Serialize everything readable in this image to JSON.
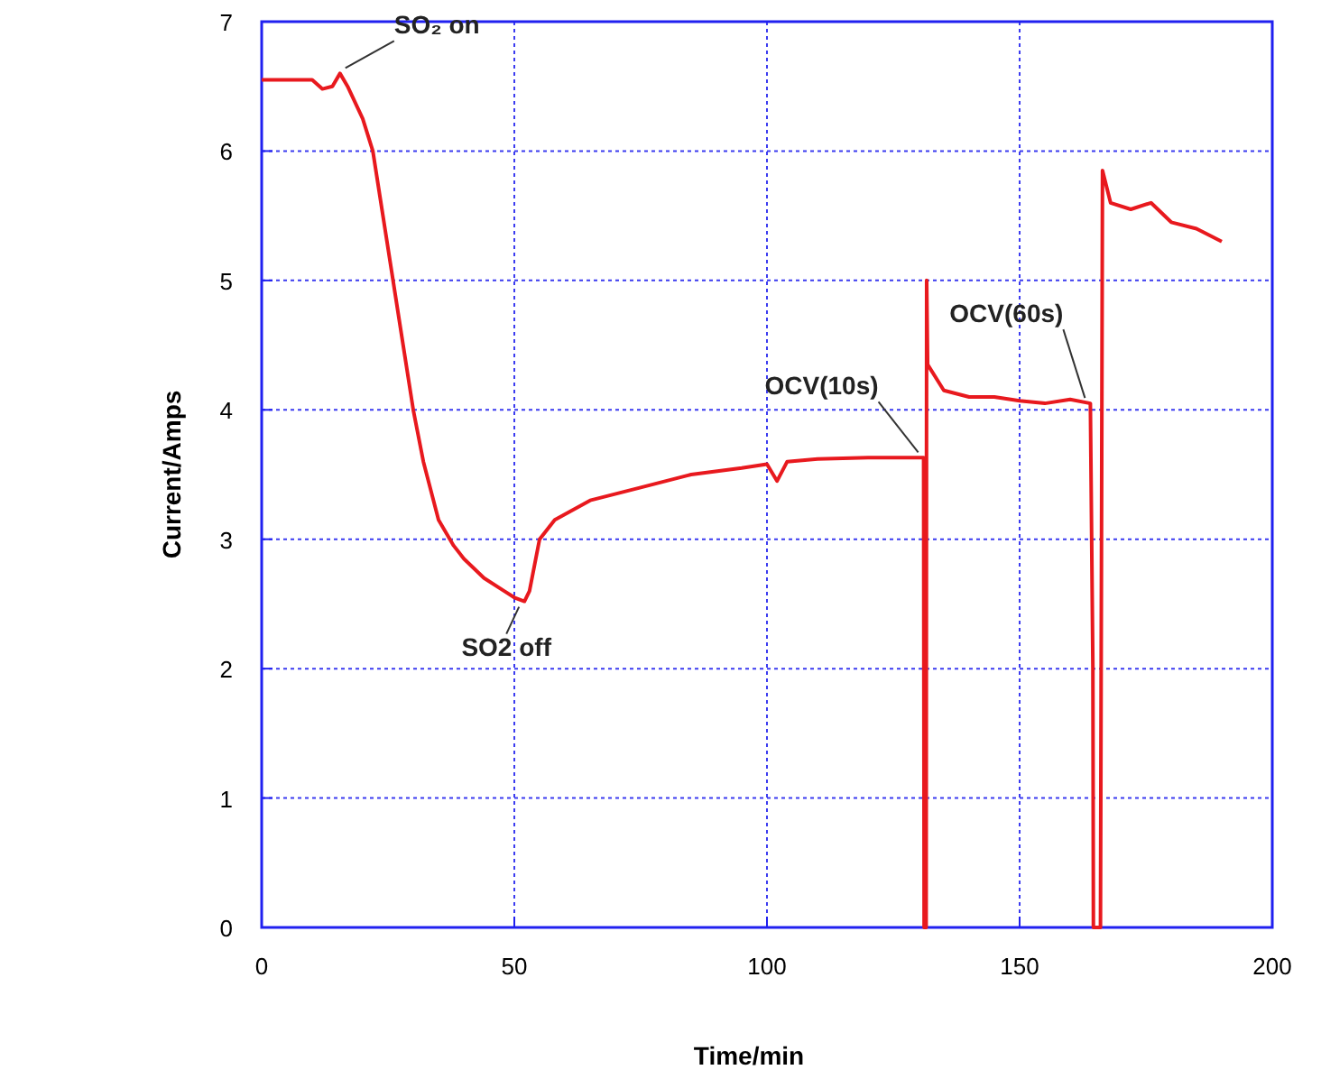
{
  "chart_data": {
    "type": "line",
    "xlabel": "Time/min",
    "ylabel": "Current/Amps",
    "x": [
      0,
      10,
      12,
      14,
      15.5,
      17,
      20,
      22,
      24,
      26,
      28,
      30,
      32,
      35,
      38,
      40,
      44,
      48,
      50,
      52,
      53,
      55,
      58,
      65,
      75,
      85,
      95,
      100,
      102,
      104,
      110,
      120,
      131,
      131.1,
      131.5,
      131.6,
      131.8,
      135,
      140,
      145,
      150,
      155,
      160,
      164,
      164.5,
      164.6,
      166,
      166.2,
      166.4,
      168,
      172,
      176,
      180,
      185,
      190
    ],
    "series": [
      {
        "color": "#e8191e",
        "values": [
          6.55,
          6.55,
          6.48,
          6.5,
          6.6,
          6.5,
          6.25,
          6,
          5.5,
          5,
          4.5,
          4,
          3.6,
          3.15,
          2.95,
          2.85,
          2.7,
          2.6,
          2.55,
          2.52,
          2.6,
          3,
          3.15,
          3.3,
          3.4,
          3.5,
          3.55,
          3.58,
          3.45,
          3.6,
          3.62,
          3.63,
          3.63,
          0,
          0,
          5,
          4.35,
          4.15,
          4.1,
          4.1,
          4.07,
          4.05,
          4.08,
          4.05,
          2,
          0,
          0,
          2.9,
          5.85,
          5.6,
          5.55,
          5.6,
          5.45,
          5.4,
          5.3
        ]
      }
    ],
    "xlim": [
      0,
      200
    ],
    "xticks": [
      0,
      50,
      100,
      150,
      200
    ],
    "ylim": [
      0,
      7
    ],
    "yticks": [
      0,
      1,
      2,
      3,
      4,
      5,
      6,
      7
    ],
    "grid": true,
    "marker": "none",
    "line_style": "solid",
    "annotations": [
      {
        "text": "SO₂ on",
        "x": 15.5,
        "y": 6.6
      },
      {
        "text": "SO2 off",
        "x": 52,
        "y": 2.52
      },
      {
        "text": "OCV(10s)",
        "x": 131,
        "y": 3.63
      },
      {
        "text": "OCV(60s)",
        "x": 164,
        "y": 4.05
      }
    ]
  }
}
